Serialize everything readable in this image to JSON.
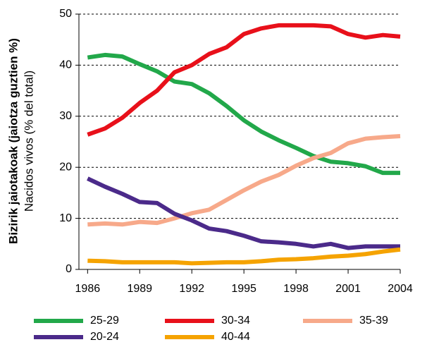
{
  "chart_data": {
    "type": "line",
    "ylabel": "Bizirik jaiotakoak (jaiotza guztien %)",
    "ylabel2": "Nacidos vivos (% del total)",
    "x": [
      1986,
      1987,
      1988,
      1989,
      1990,
      1991,
      1992,
      1993,
      1994,
      1995,
      1996,
      1997,
      1998,
      1999,
      2000,
      2001,
      2002,
      2003,
      2004
    ],
    "xlim": [
      1985.5,
      2004
    ],
    "xticks": [
      1986,
      1989,
      1992,
      1995,
      1998,
      2001,
      2004
    ],
    "ylim": [
      0,
      50
    ],
    "yticks": [
      0,
      10,
      20,
      30,
      40,
      50
    ],
    "grid": true,
    "series": [
      {
        "name": "25-29",
        "color": "#22a84a",
        "values": [
          41.5,
          42,
          41.7,
          40.2,
          38.8,
          36.8,
          36.3,
          34.5,
          32,
          29.2,
          27,
          25.3,
          23.8,
          22.2,
          21.1,
          20.8,
          20.2,
          18.9,
          18.9
        ]
      },
      {
        "name": "30-34",
        "color": "#e8101a",
        "values": [
          26.4,
          27.6,
          29.7,
          32.6,
          35,
          38.6,
          40,
          42.2,
          43.5,
          46.1,
          47.2,
          47.8,
          47.8,
          47.8,
          47.6,
          46.1,
          45.4,
          45.9,
          45.6
        ]
      },
      {
        "name": "35-39",
        "color": "#f7a98a",
        "values": [
          8.8,
          9,
          8.8,
          9.3,
          9.1,
          10,
          11,
          11.7,
          13.6,
          15.5,
          17.2,
          18.5,
          20.3,
          21.8,
          22.8,
          24.7,
          25.6,
          25.9,
          26.1
        ]
      },
      {
        "name": "20-24",
        "color": "#4b2a8a",
        "values": [
          17.8,
          16.2,
          14.8,
          13.2,
          13,
          10.9,
          9.6,
          8,
          7.5,
          6.6,
          5.5,
          5.3,
          5,
          4.5,
          5,
          4.2,
          4.5,
          4.5,
          4.5
        ]
      },
      {
        "name": "40-44",
        "color": "#f5a300",
        "values": [
          1.7,
          1.6,
          1.4,
          1.4,
          1.4,
          1.4,
          1.2,
          1.3,
          1.4,
          1.4,
          1.6,
          1.9,
          2,
          2.2,
          2.5,
          2.7,
          3,
          3.5,
          3.9
        ]
      }
    ]
  }
}
